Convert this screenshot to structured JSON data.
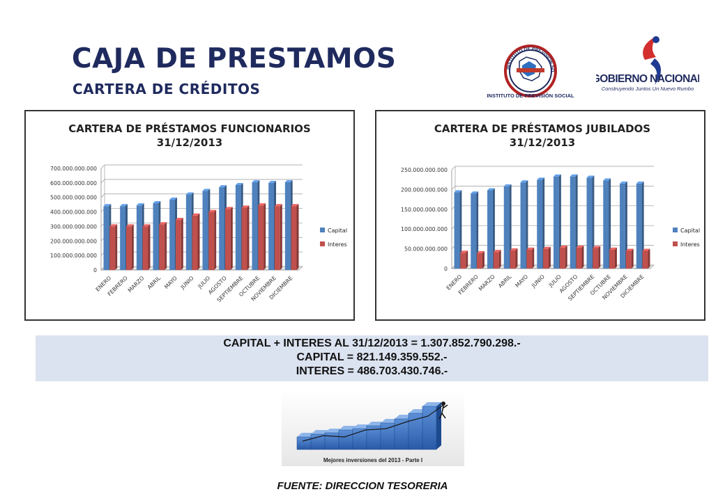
{
  "header": {
    "title": "CAJA DE PRESTAMOS",
    "subtitle": "CARTERA DE CRÉDITOS"
  },
  "logos": {
    "ips": {
      "ring_text": "INSTITUTO DE PREVISIÓN SOCIAL",
      "caption": "INSTITUTO DE PREVISIÓN SOCIAL"
    },
    "gobierno": {
      "name": "GOBIERNO NACIONAL",
      "tagline": "Construyendo Juntos Un Nuevo Rumbo"
    }
  },
  "colors": {
    "title": "#1f2a5e",
    "capital": "#4f81bd",
    "interes": "#c0504d",
    "summary_bg": "#dbe3f0"
  },
  "chart_data": [
    {
      "type": "bar",
      "title": "CARTERA DE PRÉSTAMOS FUNCIONARIOS",
      "subtitle": "31/12/2013",
      "categories": [
        "ENERO",
        "FEBRERO",
        "MARZO",
        "ABRIL",
        "MAYO",
        "JUNIO",
        "JULIO",
        "AGOSTO",
        "SEPTIEMBRE",
        "OCTUBRE",
        "NOVIEMBRE",
        "DICIEMBRE"
      ],
      "series": [
        {
          "name": "Capital",
          "color": "#4f81bd",
          "values": [
            440000000000,
            440000000000,
            445000000000,
            460000000000,
            485000000000,
            520000000000,
            545000000000,
            570000000000,
            585000000000,
            605000000000,
            600000000000,
            605000000000
          ]
        },
        {
          "name": "Interes",
          "color": "#c0504d",
          "values": [
            300000000000,
            300000000000,
            300000000000,
            315000000000,
            345000000000,
            375000000000,
            400000000000,
            420000000000,
            430000000000,
            445000000000,
            440000000000,
            440000000000
          ]
        }
      ],
      "ylim": [
        0,
        700000000000
      ],
      "yticks": [
        0,
        100000000000,
        200000000000,
        300000000000,
        400000000000,
        500000000000,
        600000000000,
        700000000000
      ],
      "ytick_labels": [
        "0",
        "100.000.000.000",
        "200.000.000.000",
        "300.000.000.000",
        "400.000.000.000",
        "500.000.000.000",
        "600.000.000.000",
        "700.000.000.000"
      ],
      "grid": true,
      "legend": "right"
    },
    {
      "type": "bar",
      "title": "CARTERA DE PRÉSTAMOS JUBILADOS",
      "subtitle": "31/12/2013",
      "categories": [
        "ENERO",
        "FEBRERO",
        "MARZO",
        "ABRIL",
        "MAYO",
        "JUNIO",
        "JULIO",
        "AGOSTO",
        "SEPTIEMBRE",
        "OCTUBRE",
        "NOVIEMBRE",
        "DICIEMBRE"
      ],
      "series": [
        {
          "name": "Capital",
          "color": "#4f81bd",
          "values": [
            193000000000,
            190000000000,
            198000000000,
            208000000000,
            218000000000,
            225000000000,
            233000000000,
            233000000000,
            230000000000,
            223000000000,
            215000000000,
            215000000000
          ]
        },
        {
          "name": "Interes",
          "color": "#c0504d",
          "values": [
            40000000000,
            39000000000,
            42000000000,
            46000000000,
            48000000000,
            50000000000,
            53000000000,
            53000000000,
            52000000000,
            48000000000,
            45000000000,
            45000000000
          ]
        }
      ],
      "ylim": [
        0,
        250000000000
      ],
      "yticks": [
        0,
        50000000000,
        100000000000,
        150000000000,
        200000000000,
        250000000000
      ],
      "ytick_labels": [
        "0",
        "50.000.000.000",
        "100.000.000.000",
        "150.000.000.000",
        "200.000.000.000",
        "250.000.000.000"
      ],
      "grid": true,
      "legend": "right"
    }
  ],
  "summary": {
    "line1": "CAPITAL + INTERES AL 31/12/2013 = 1.307.852.790.298.-",
    "line2": "CAPITAL = 821.149.359.552.-",
    "line3": "INTERES = 486.703.430.746.-"
  },
  "image_caption": "Mejores inversiones del 2013 - Parte I",
  "footer": {
    "source": "FUENTE: DIRECCION TESORERIA"
  }
}
